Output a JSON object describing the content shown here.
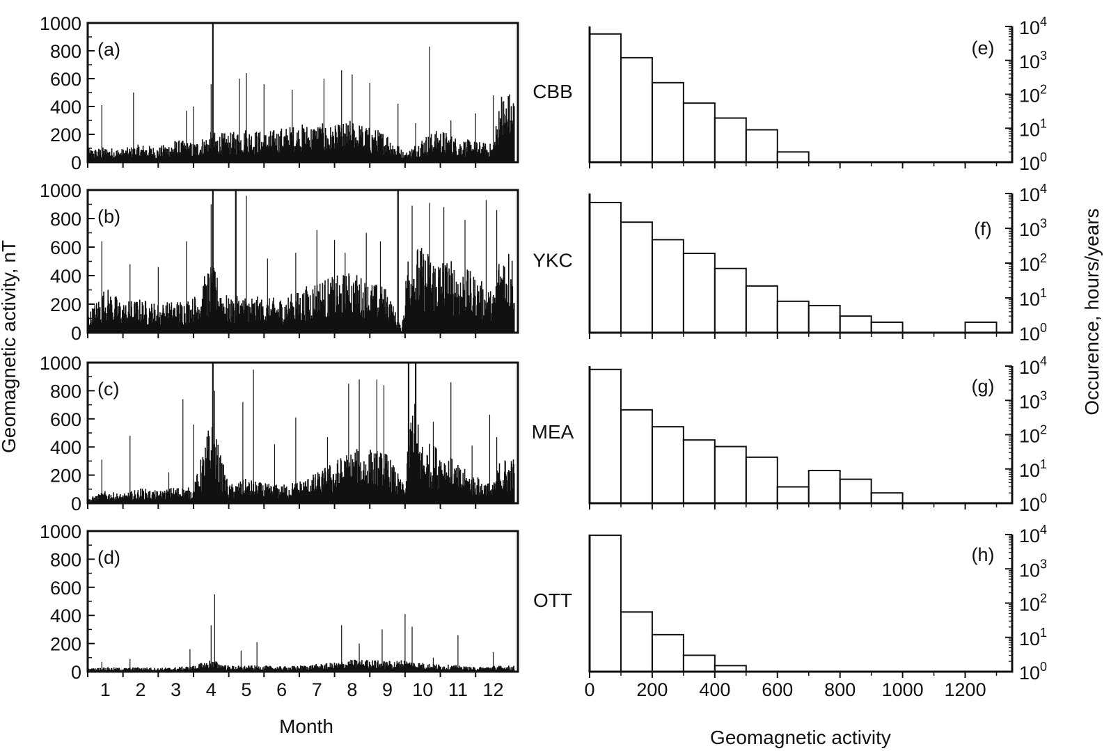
{
  "figure": {
    "left_ylabel": "Geomagnetic activity, nT",
    "right_ylabel": "Occurence, hours/years",
    "left_xlabel": "Month",
    "right_xlabel": "Geomagnetic activity"
  },
  "chart_data": [
    {
      "type": "bar",
      "panel": "(a)",
      "station": "CBB",
      "xlabel": "",
      "ylabel": "",
      "ylim": [
        0,
        1000
      ],
      "yticks": [
        "0",
        "200",
        "400",
        "600",
        "800",
        "1000"
      ],
      "x_ticks": [
        "1",
        "2",
        "3",
        "4",
        "5",
        "6",
        "7",
        "8",
        "9",
        "10",
        "11",
        "12"
      ],
      "spikes": [
        [
          0.9,
          410
        ],
        [
          1.8,
          500
        ],
        [
          3.3,
          370
        ],
        [
          3.5,
          400
        ],
        [
          4.05,
          1000
        ],
        [
          4.0,
          560
        ],
        [
          4.8,
          600
        ],
        [
          5.0,
          640
        ],
        [
          5.5,
          560
        ],
        [
          6.3,
          520
        ],
        [
          7.2,
          600
        ],
        [
          7.7,
          660
        ],
        [
          8.0,
          630
        ],
        [
          8.5,
          570
        ],
        [
          9.3,
          420
        ],
        [
          9.8,
          280
        ],
        [
          10.2,
          830
        ],
        [
          10.8,
          300
        ],
        [
          11.5,
          350
        ],
        [
          12.0,
          480
        ]
      ],
      "envelope": [
        [
          0.5,
          90
        ],
        [
          1.0,
          100
        ],
        [
          1.5,
          90
        ],
        [
          2.0,
          120
        ],
        [
          2.5,
          100
        ],
        [
          3.0,
          150
        ],
        [
          3.5,
          130
        ],
        [
          4.0,
          200
        ],
        [
          4.5,
          190
        ],
        [
          5.0,
          230
        ],
        [
          5.5,
          200
        ],
        [
          6.0,
          230
        ],
        [
          6.5,
          250
        ],
        [
          7.0,
          260
        ],
        [
          7.5,
          240
        ],
        [
          8.0,
          280
        ],
        [
          8.5,
          230
        ],
        [
          9.0,
          200
        ],
        [
          9.5,
          60
        ],
        [
          10.0,
          170
        ],
        [
          10.5,
          220
        ],
        [
          11.0,
          160
        ],
        [
          11.5,
          140
        ],
        [
          12.0,
          120
        ],
        [
          12.2,
          470
        ]
      ]
    },
    {
      "type": "bar",
      "panel": "(b)",
      "station": "YKC",
      "xlabel": "",
      "ylabel": "",
      "ylim": [
        0,
        1000
      ],
      "yticks": [
        "0",
        "200",
        "400",
        "600",
        "800",
        "1000"
      ],
      "x_ticks": [
        "1",
        "2",
        "3",
        "4",
        "5",
        "6",
        "7",
        "8",
        "9",
        "10",
        "11",
        "12"
      ],
      "spikes": [
        [
          0.9,
          640
        ],
        [
          1.7,
          480
        ],
        [
          2.5,
          460
        ],
        [
          3.3,
          640
        ],
        [
          4.05,
          1000
        ],
        [
          4.0,
          900
        ],
        [
          4.7,
          1000
        ],
        [
          5.0,
          960
        ],
        [
          5.6,
          520
        ],
        [
          6.4,
          560
        ],
        [
          7.0,
          720
        ],
        [
          7.5,
          650
        ],
        [
          7.8,
          560
        ],
        [
          8.4,
          700
        ],
        [
          8.8,
          640
        ],
        [
          9.3,
          1000
        ],
        [
          9.7,
          890
        ],
        [
          10.2,
          910
        ],
        [
          10.6,
          880
        ],
        [
          11.2,
          790
        ],
        [
          11.8,
          930
        ],
        [
          12.1,
          860
        ]
      ],
      "envelope": [
        [
          0.5,
          120
        ],
        [
          1.0,
          300
        ],
        [
          1.5,
          200
        ],
        [
          2.0,
          220
        ],
        [
          2.5,
          190
        ],
        [
          3.0,
          210
        ],
        [
          3.5,
          230
        ],
        [
          4.0,
          450
        ],
        [
          4.5,
          220
        ],
        [
          5.0,
          250
        ],
        [
          5.5,
          220
        ],
        [
          6.0,
          230
        ],
        [
          6.5,
          270
        ],
        [
          7.0,
          350
        ],
        [
          7.5,
          360
        ],
        [
          8.0,
          400
        ],
        [
          8.5,
          330
        ],
        [
          9.0,
          290
        ],
        [
          9.4,
          20
        ],
        [
          9.6,
          590
        ],
        [
          10.0,
          550
        ],
        [
          10.5,
          500
        ],
        [
          11.0,
          450
        ],
        [
          11.5,
          370
        ],
        [
          12.0,
          260
        ],
        [
          12.2,
          560
        ]
      ]
    },
    {
      "type": "bar",
      "panel": "(c)",
      "station": "MEA",
      "xlabel": "",
      "ylabel": "",
      "ylim": [
        0,
        1000
      ],
      "yticks": [
        "0",
        "200",
        "400",
        "600",
        "800",
        "1000"
      ],
      "x_ticks": [
        "1",
        "2",
        "3",
        "4",
        "5",
        "6",
        "7",
        "8",
        "9",
        "10",
        "11",
        "12"
      ],
      "spikes": [
        [
          0.9,
          310
        ],
        [
          1.7,
          480
        ],
        [
          2.8,
          220
        ],
        [
          3.2,
          740
        ],
        [
          3.5,
          560
        ],
        [
          4.05,
          1000
        ],
        [
          4.1,
          800
        ],
        [
          4.9,
          720
        ],
        [
          5.2,
          950
        ],
        [
          5.8,
          420
        ],
        [
          6.4,
          610
        ],
        [
          7.3,
          470
        ],
        [
          7.9,
          850
        ],
        [
          8.2,
          880
        ],
        [
          8.7,
          880
        ],
        [
          8.9,
          840
        ],
        [
          9.6,
          1000
        ],
        [
          9.8,
          1000
        ],
        [
          10.3,
          580
        ],
        [
          10.8,
          860
        ],
        [
          11.4,
          410
        ],
        [
          11.9,
          630
        ],
        [
          12.1,
          470
        ]
      ],
      "envelope": [
        [
          0.5,
          30
        ],
        [
          1.0,
          80
        ],
        [
          1.5,
          60
        ],
        [
          2.0,
          100
        ],
        [
          2.5,
          80
        ],
        [
          3.0,
          110
        ],
        [
          3.5,
          100
        ],
        [
          4.0,
          560
        ],
        [
          4.5,
          120
        ],
        [
          5.0,
          160
        ],
        [
          5.5,
          130
        ],
        [
          6.0,
          120
        ],
        [
          6.5,
          150
        ],
        [
          7.0,
          200
        ],
        [
          7.5,
          280
        ],
        [
          8.0,
          350
        ],
        [
          8.5,
          360
        ],
        [
          9.0,
          330
        ],
        [
          9.5,
          100
        ],
        [
          9.7,
          750
        ],
        [
          10.0,
          400
        ],
        [
          10.5,
          380
        ],
        [
          11.0,
          250
        ],
        [
          11.5,
          180
        ],
        [
          12.0,
          120
        ],
        [
          12.2,
          300
        ]
      ]
    },
    {
      "type": "bar",
      "panel": "(d)",
      "station": "OTT",
      "xlabel": "",
      "ylabel": "",
      "ylim": [
        0,
        1000
      ],
      "yticks": [
        "0",
        "200",
        "400",
        "600",
        "800",
        "1000"
      ],
      "x_ticks": [
        "1",
        "2",
        "3",
        "4",
        "5",
        "6",
        "7",
        "8",
        "9",
        "10",
        "11",
        "12"
      ],
      "spikes": [
        [
          0.9,
          70
        ],
        [
          1.7,
          90
        ],
        [
          3.4,
          160
        ],
        [
          4.0,
          330
        ],
        [
          4.1,
          550
        ],
        [
          4.85,
          150
        ],
        [
          5.3,
          210
        ],
        [
          7.7,
          330
        ],
        [
          8.2,
          200
        ],
        [
          8.85,
          300
        ],
        [
          9.5,
          410
        ],
        [
          9.7,
          320
        ],
        [
          10.3,
          100
        ],
        [
          11.0,
          260
        ],
        [
          12.0,
          140
        ]
      ],
      "envelope": [
        [
          0.5,
          20
        ],
        [
          1.0,
          30
        ],
        [
          1.5,
          25
        ],
        [
          2.0,
          30
        ],
        [
          2.5,
          25
        ],
        [
          3.0,
          30
        ],
        [
          3.5,
          40
        ],
        [
          4.0,
          80
        ],
        [
          4.5,
          40
        ],
        [
          5.0,
          40
        ],
        [
          5.5,
          40
        ],
        [
          6.0,
          35
        ],
        [
          6.5,
          40
        ],
        [
          7.0,
          50
        ],
        [
          7.5,
          60
        ],
        [
          8.0,
          80
        ],
        [
          8.5,
          80
        ],
        [
          9.0,
          70
        ],
        [
          9.5,
          80
        ],
        [
          10.0,
          60
        ],
        [
          10.5,
          50
        ],
        [
          11.0,
          40
        ],
        [
          11.5,
          30
        ],
        [
          12.0,
          40
        ]
      ]
    },
    {
      "type": "bar",
      "panel": "(e)",
      "histogram": true,
      "xlabel": "",
      "ylabel": "",
      "xlim": [
        0,
        1350
      ],
      "yscale": "log",
      "ylim": [
        1,
        10000
      ],
      "bin_width": 100,
      "bin_start": [
        0,
        100,
        200,
        300,
        400,
        500,
        600
      ],
      "values": [
        6000,
        1200,
        220,
        55,
        20,
        9,
        2
      ]
    },
    {
      "type": "bar",
      "panel": "(f)",
      "histogram": true,
      "xlabel": "",
      "ylabel": "",
      "xlim": [
        0,
        1350
      ],
      "yscale": "log",
      "ylim": [
        1,
        10000
      ],
      "bin_width": 100,
      "bin_start": [
        0,
        100,
        200,
        300,
        400,
        500,
        600,
        700,
        800,
        900,
        1200
      ],
      "values": [
        5500,
        1500,
        470,
        190,
        70,
        22,
        8,
        6,
        3,
        2,
        2
      ]
    },
    {
      "type": "bar",
      "panel": "(g)",
      "histogram": true,
      "xlabel": "",
      "ylabel": "",
      "xlim": [
        0,
        1350
      ],
      "yscale": "log",
      "ylim": [
        1,
        10000
      ],
      "bin_width": 100,
      "bin_start": [
        0,
        100,
        200,
        300,
        400,
        500,
        600,
        700,
        800,
        900
      ],
      "values": [
        8000,
        530,
        170,
        70,
        45,
        22,
        3,
        9,
        5,
        2
      ]
    },
    {
      "type": "bar",
      "panel": "(h)",
      "histogram": true,
      "xlabel": "",
      "ylabel": "",
      "xlim": [
        0,
        1350
      ],
      "yscale": "log",
      "ylim": [
        1,
        10000
      ],
      "bin_width": 100,
      "bin_start": [
        0,
        100,
        200,
        300,
        400
      ],
      "values": [
        9500,
        55,
        12,
        3,
        1.5
      ],
      "x_ticks": [
        "0",
        "200",
        "400",
        "600",
        "800",
        "1000",
        "1200"
      ]
    }
  ]
}
